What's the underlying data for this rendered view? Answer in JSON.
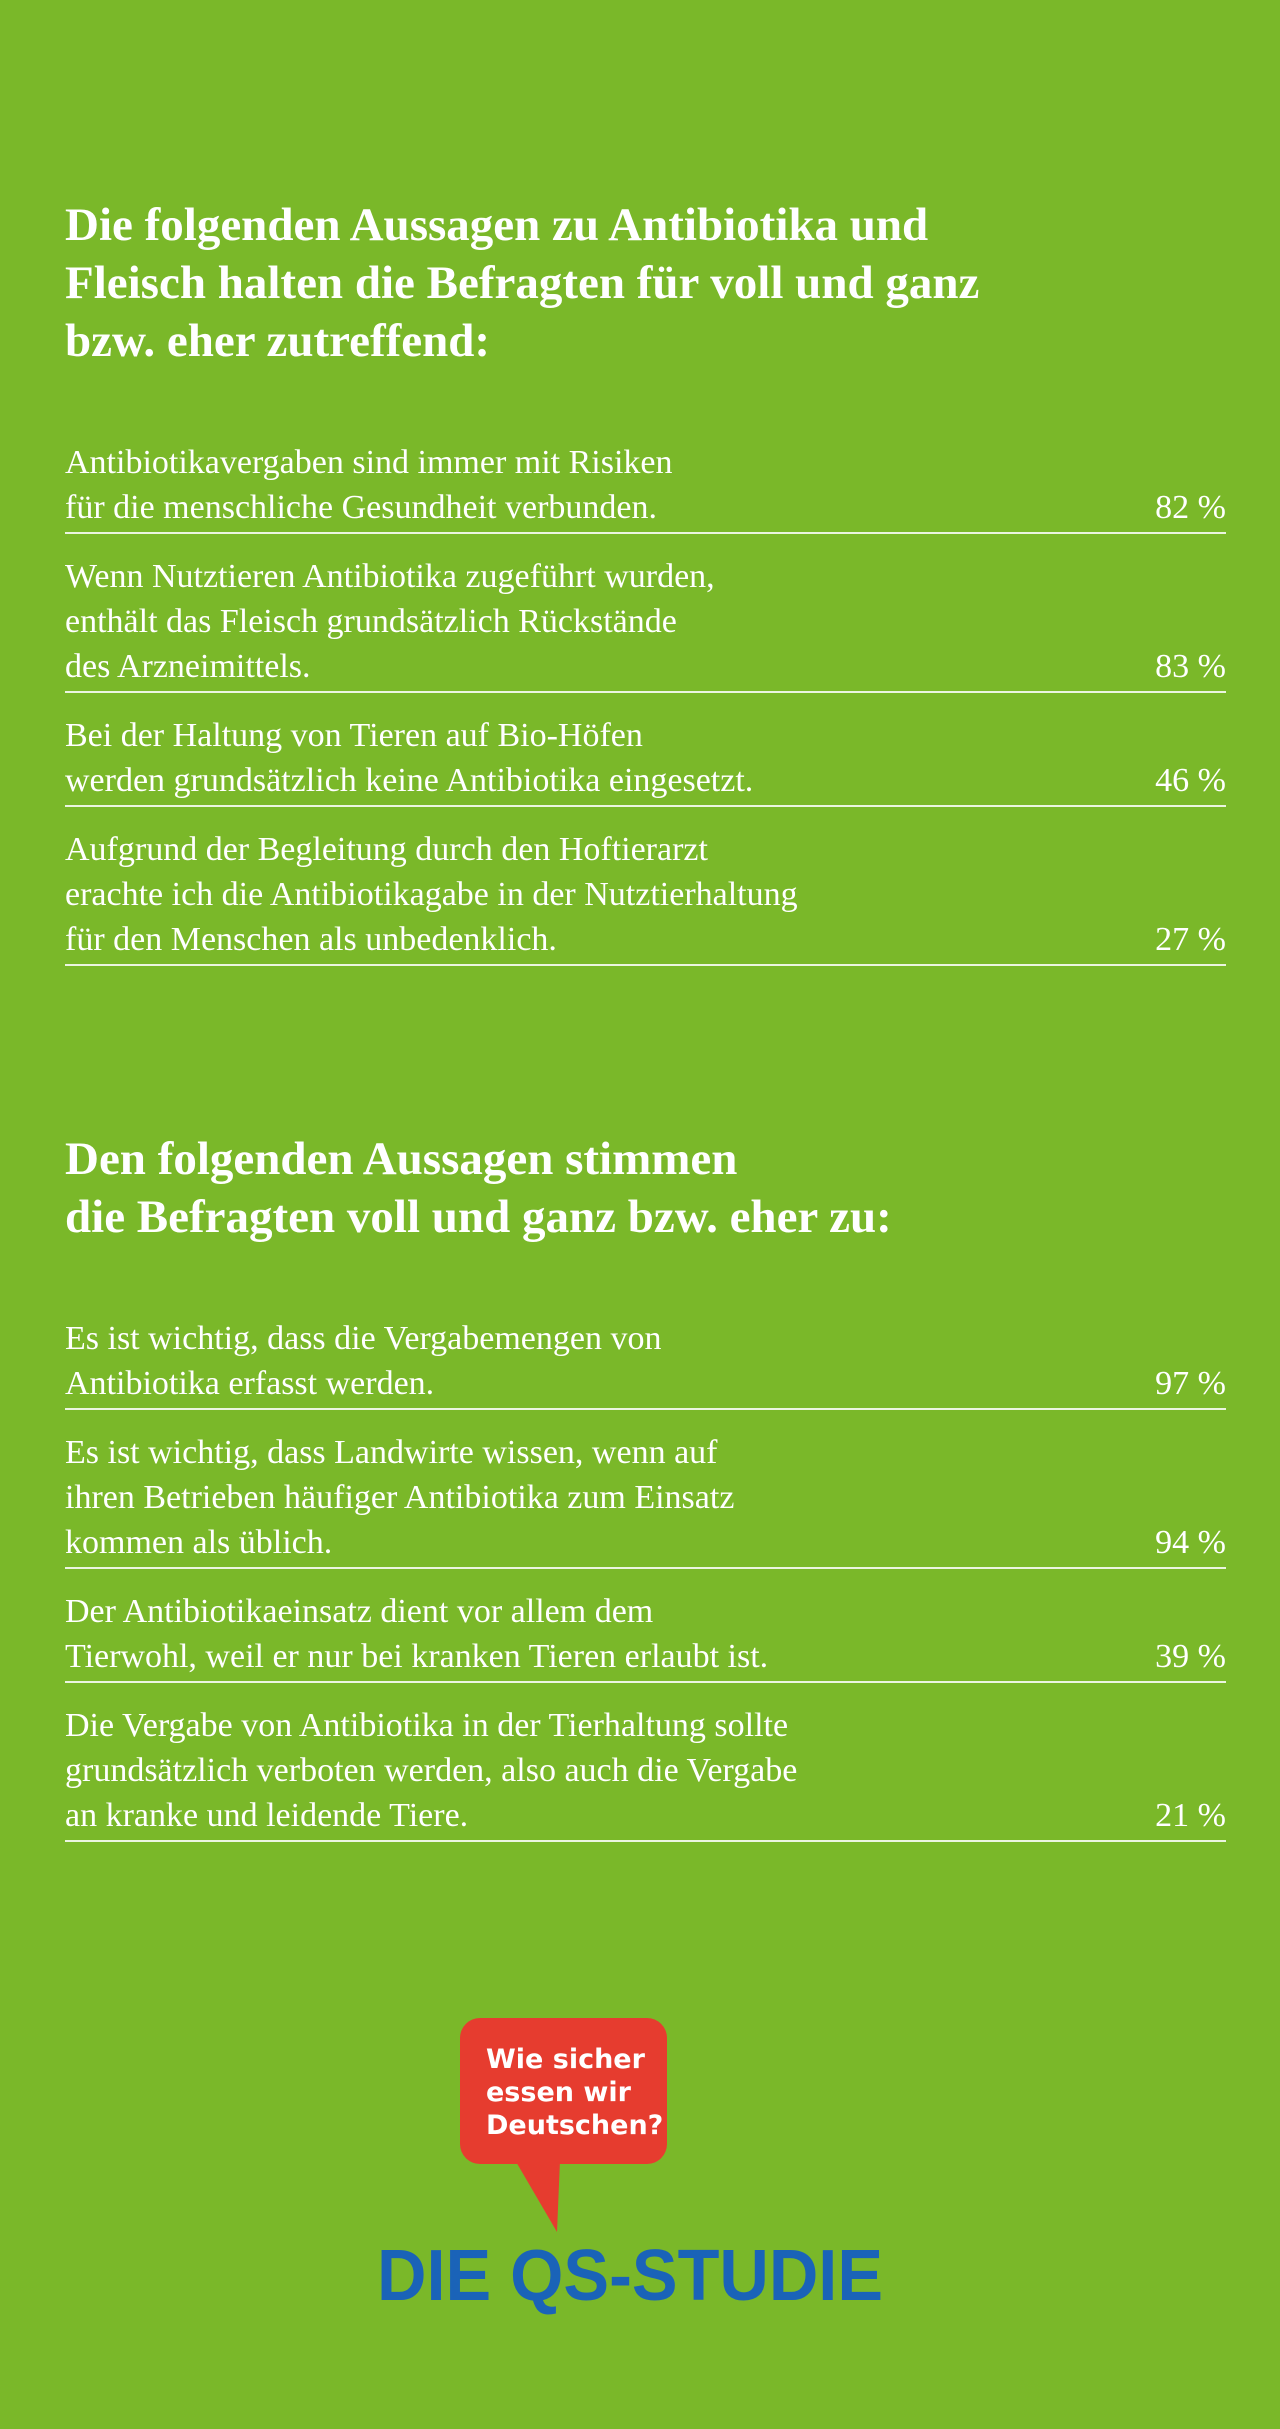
{
  "sections": [
    {
      "title": [
        "Die folgenden Aussagen zu Antibiotika und",
        "Fleisch halten die Befragten für voll und ganz",
        "bzw. eher zutreffend:"
      ],
      "items": [
        {
          "lines": [
            "Antibiotikavergaben sind immer mit Risiken",
            "für die menschliche Gesundheit verbunden."
          ],
          "value": "82 %"
        },
        {
          "lines": [
            "Wenn Nutztieren Antibiotika zugeführt wurden,",
            "enthält das Fleisch grundsätzlich Rückstände",
            "des Arzneimittels."
          ],
          "value": "83 %"
        },
        {
          "lines": [
            "Bei der Haltung von Tieren auf Bio-Höfen",
            "werden grundsätzlich keine Antibiotika eingesetzt."
          ],
          "value": "46 %"
        },
        {
          "lines": [
            "Aufgrund der Begleitung durch den Hoftierarzt",
            "erachte ich die Antibiotikagabe in der Nutztierhaltung",
            "für den Menschen als unbedenklich."
          ],
          "value": "27 %"
        }
      ]
    },
    {
      "title": [
        "Den folgenden Aussagen stimmen",
        "die Befragten voll und ganz bzw. eher zu:"
      ],
      "items": [
        {
          "lines": [
            "Es ist wichtig, dass die Vergabemengen von",
            "Antibiotika erfasst werden."
          ],
          "value": "97 %"
        },
        {
          "lines": [
            "Es ist wichtig, dass Landwirte wissen, wenn auf",
            "ihren Betrieben häufiger Antibiotika zum Einsatz",
            "kommen als üblich."
          ],
          "value": "94 %"
        },
        {
          "lines": [
            "Der Antibiotikaeinsatz dient vor allem dem",
            "Tierwohl, weil er nur bei kranken Tieren erlaubt ist."
          ],
          "value": "39 %"
        },
        {
          "lines": [
            "Die Vergabe von Antibiotika in der Tierhaltung sollte",
            "grundsätzlich verboten werden, also auch die Vergabe",
            "an kranke und leidende Tiere."
          ],
          "value": "21 %"
        }
      ]
    }
  ],
  "logo": {
    "bubble": [
      "Wie sicher",
      "essen wir",
      "Deutschen?"
    ],
    "name": "DIE QS-STUDIE"
  }
}
